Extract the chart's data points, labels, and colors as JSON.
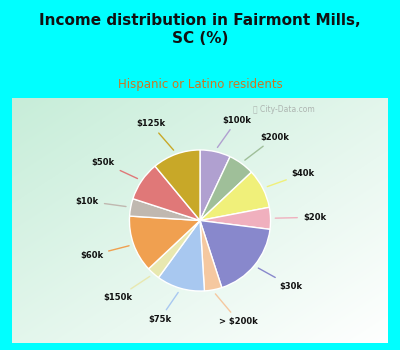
{
  "title": "Income distribution in Fairmont Mills,\nSC (%)",
  "subtitle": "Hispanic or Latino residents",
  "title_color": "#111111",
  "subtitle_color": "#cc7722",
  "bg_cyan": "#00ffff",
  "watermark": "ⓘ City-Data.com",
  "labels": [
    "$100k",
    "$200k",
    "$40k",
    "$20k",
    "$30k",
    "> $200k",
    "$75k",
    "$150k",
    "$60k",
    "$10k",
    "$50k",
    "$125k"
  ],
  "values": [
    7,
    6,
    9,
    5,
    18,
    4,
    11,
    3,
    13,
    4,
    9,
    11
  ],
  "colors": [
    "#b0a0d0",
    "#9fbf99",
    "#f0f07a",
    "#f0b0be",
    "#8888cc",
    "#f5c8a0",
    "#a8c8f0",
    "#e8e8b0",
    "#f0a050",
    "#c0b8b0",
    "#e07878",
    "#c8a828"
  ],
  "start_angle": 90,
  "counterclock": false
}
